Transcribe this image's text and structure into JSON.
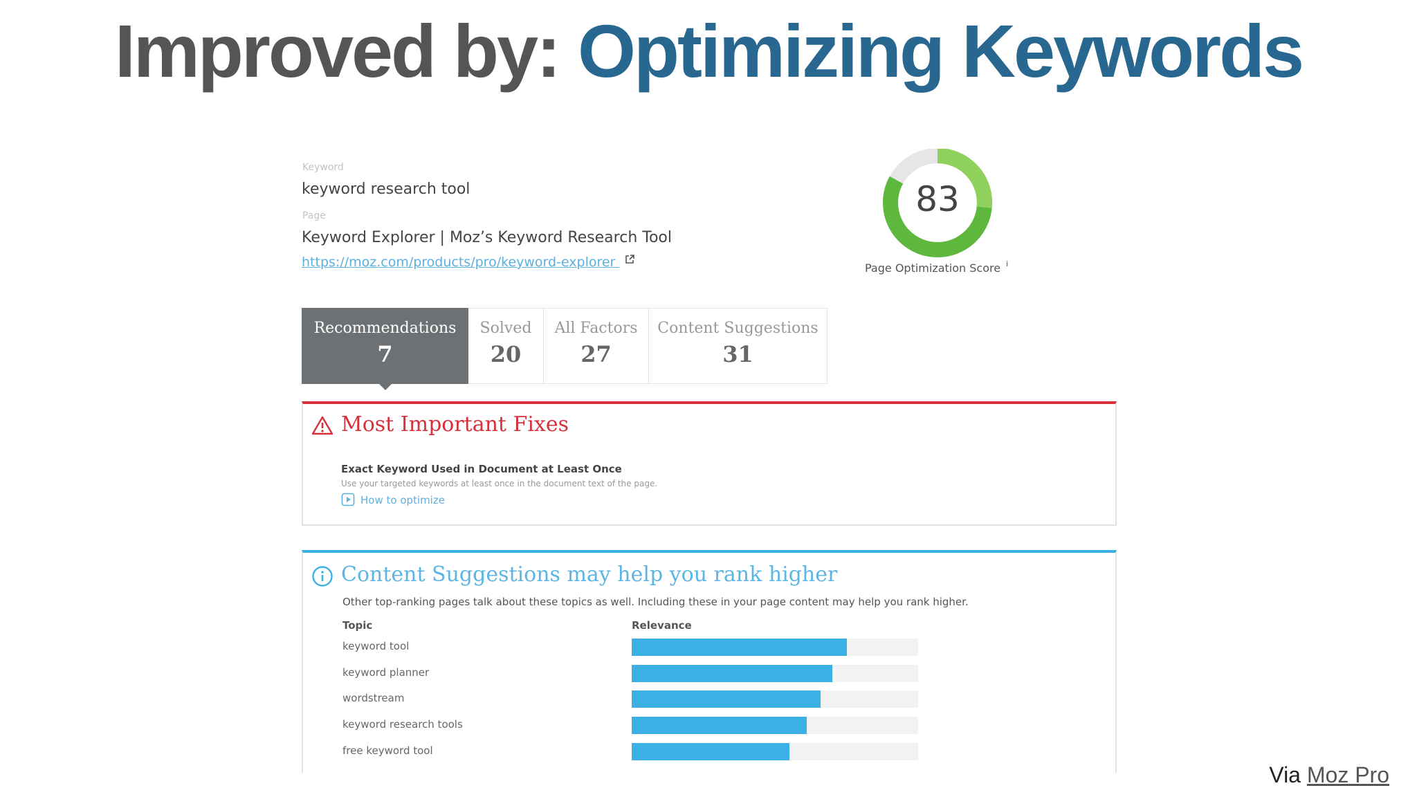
{
  "slide": {
    "title_prefix": "Improved by:",
    "title_highlight": "Optimizing Keywords",
    "credit_prefix": "Via",
    "credit_link": "Moz Pro"
  },
  "keyword_block": {
    "keyword_label": "Keyword",
    "keyword_value": "keyword research tool",
    "page_label": "Page",
    "page_title": "Keyword Explorer | Moz’s Keyword Research Tool",
    "page_url": "https://moz.com/products/pro/keyword-explorer"
  },
  "score": {
    "value": "83",
    "fraction": 0.83,
    "label": "Page Optimization Score",
    "info_glyph": "i",
    "ring_color": "#5fb83e",
    "ring_highlight_color": "#8fd15c"
  },
  "tabs": [
    {
      "label": "Recommendations",
      "count": "7",
      "active": true
    },
    {
      "label": "Solved",
      "count": "20",
      "active": false
    },
    {
      "label": "All Factors",
      "count": "27",
      "active": false
    },
    {
      "label": "Content Suggestions",
      "count": "31",
      "active": false
    }
  ],
  "fixes_panel": {
    "title": "Most Important Fixes",
    "icon": "warning-icon",
    "accent": "#d6303b",
    "item_heading": "Exact Keyword Used in Document at Least Once",
    "item_description": "Use your targeted keywords at least once in the document text of the page.",
    "item_link": "How to optimize"
  },
  "suggestions_panel": {
    "title": "Content Suggestions may help you rank higher",
    "icon": "info-icon",
    "accent": "#3bb1e6",
    "description": "Other top-ranking pages talk about these topics as well. Including these in your page content may help you rank higher.",
    "col_topic": "Topic",
    "col_relevance": "Relevance",
    "rows": [
      {
        "topic": "keyword tool",
        "relevance": 0.75
      },
      {
        "topic": "keyword planner",
        "relevance": 0.7
      },
      {
        "topic": "wordstream",
        "relevance": 0.66
      },
      {
        "topic": "keyword research tools",
        "relevance": 0.61
      },
      {
        "topic": "free keyword tool",
        "relevance": 0.55
      }
    ]
  }
}
